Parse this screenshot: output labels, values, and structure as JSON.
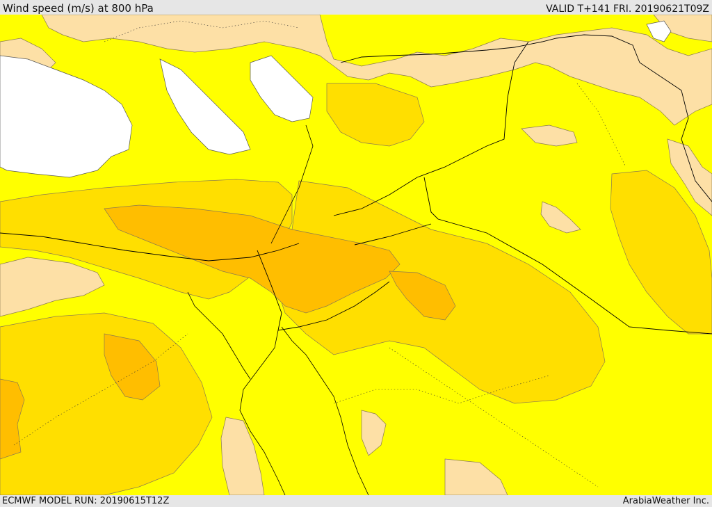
{
  "header": {
    "title": "Wind speed (m/s) at 800 hPa",
    "valid": "VALID T+141 FRI. 20190621T09Z"
  },
  "footer": {
    "model_run": "ECMWF MODEL RUN: 20190615T12Z",
    "credit": "ArabiaWeather Inc."
  },
  "map": {
    "variable": "wind speed",
    "level": "800 hPa",
    "colors": {
      "sea_no_data": "#ffffff",
      "calm": "#fde0a6",
      "level_1": "#ffff00",
      "level_2": "#ffdf00",
      "level_3": "#ffbe00",
      "level_4": "#ffa500",
      "boundary": "#000000"
    }
  }
}
